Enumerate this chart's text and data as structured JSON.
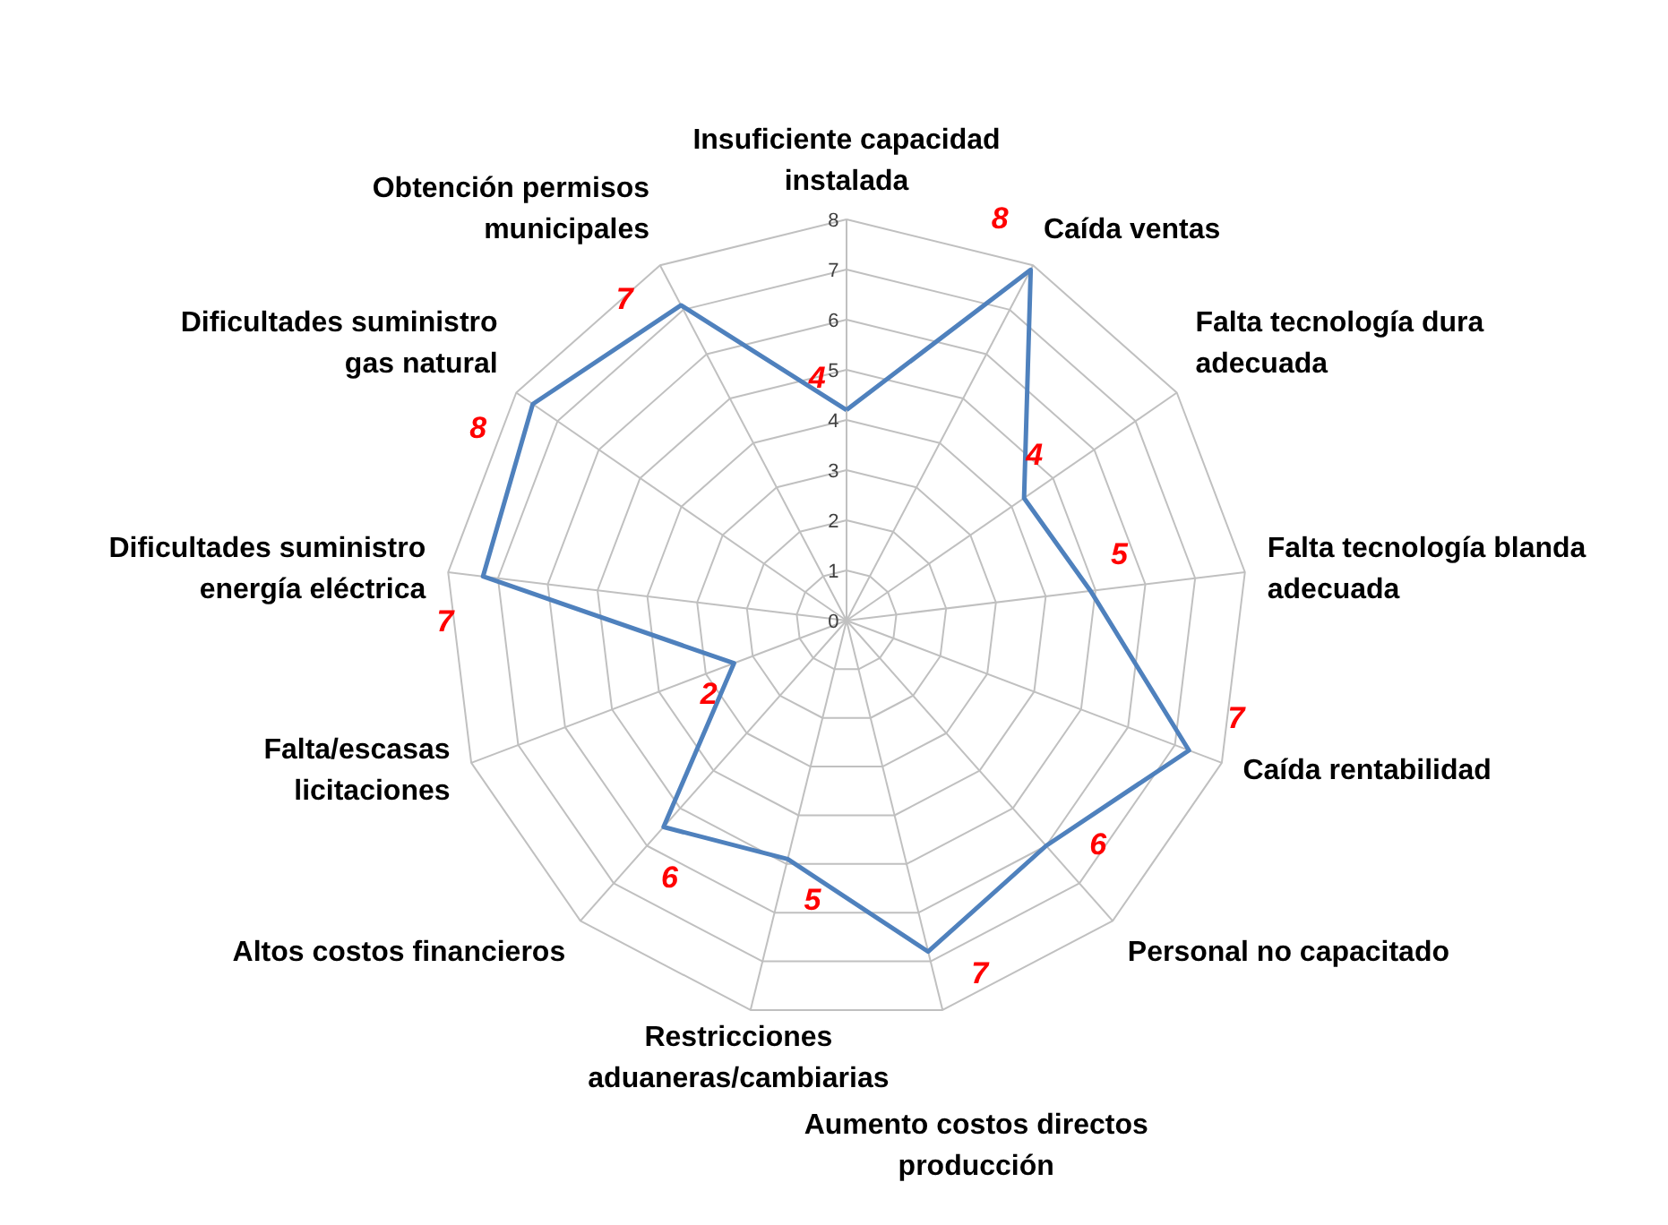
{
  "chart_data": {
    "type": "radar",
    "categories": [
      "Insuficiente capacidad instalada",
      "Caída ventas",
      "Falta tecnología dura adecuada",
      "Falta tecnología blanda adecuada",
      "Caída rentabilidad",
      "Personal no capacitado",
      "Aumento costos directos producción",
      "Restricciones aduaneras/cambiarias",
      "Altos costos financieros",
      "Falta/escasas licitaciones",
      "Dificultades suministro energía eléctrica",
      "Dificultades suministro gas natural",
      "Obtención permisos municipales"
    ],
    "series": [
      {
        "color": "#4f81bd",
        "values": [
          4.2,
          7.9,
          4.3,
          4.9,
          7.3,
          6.0,
          6.8,
          4.9,
          5.5,
          2.4,
          7.3,
          7.6,
          7.1
        ],
        "value_labels": [
          "4",
          "8",
          "4",
          "5",
          "7",
          "6",
          "7",
          "5",
          "6",
          "2",
          "7",
          "8",
          "7"
        ]
      }
    ],
    "ylim": [
      0,
      8
    ],
    "yticks": [
      0,
      1,
      2,
      3,
      4,
      5,
      6,
      7,
      8
    ],
    "grid": true
  }
}
